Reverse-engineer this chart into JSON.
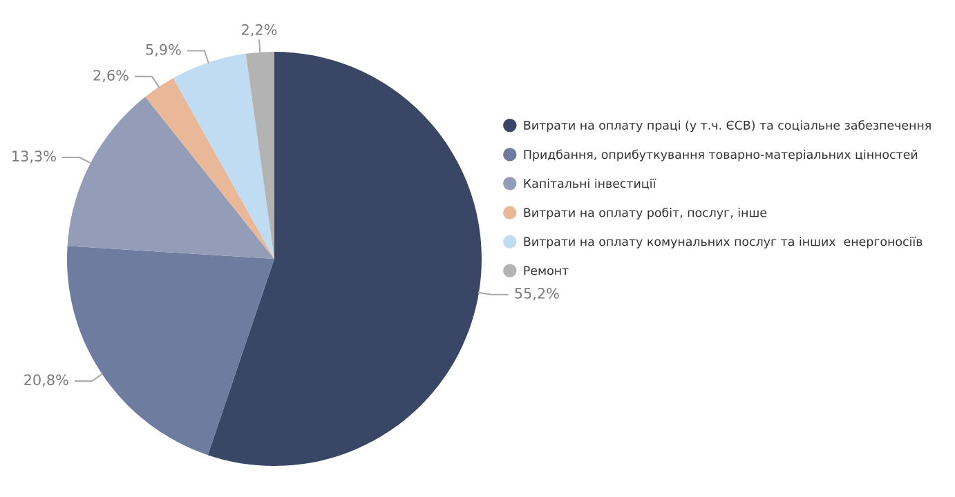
{
  "chart_data": {
    "type": "pie",
    "categories": [
      "Витрати на оплату праці (у т.ч. ЄСВ) та соціальне забезпечення",
      "Придбання, оприбуткування товарно-матеріальних цінностей",
      "Капітальні інвестиції",
      "Витрати на оплату робіт, послуг, інше",
      "Витрати на оплату комунальних послуг та інших  енергоносіїв",
      "Ремонт"
    ],
    "values": [
      55.2,
      20.8,
      13.3,
      2.6,
      5.9,
      2.2
    ],
    "value_labels": [
      "55,2%",
      "20,8%",
      "13,3%",
      "2,6%",
      "5,9%",
      "2,2%"
    ],
    "colors": [
      "#3a4666",
      "#6e7ca0",
      "#949db8",
      "#e8b898",
      "#bfdcf3",
      "#b3b3b3"
    ],
    "legend": "right"
  }
}
